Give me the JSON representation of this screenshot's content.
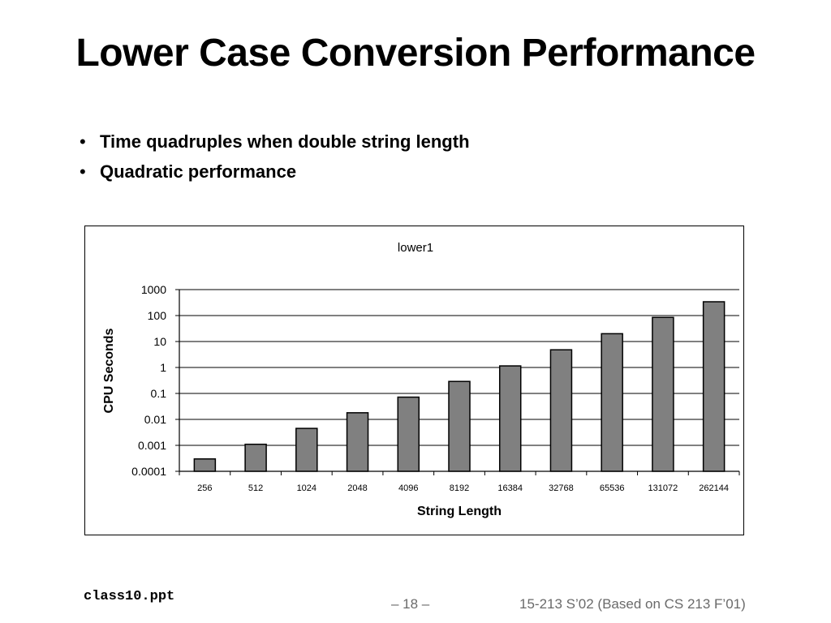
{
  "slide": {
    "title": "Lower Case Conversion Performance",
    "bullets": [
      "Time quadruples when double string length",
      "Quadratic performance"
    ],
    "bullet_glyph": "•"
  },
  "footer": {
    "file": "class10.ppt",
    "page": "– 18 –",
    "course": "15-213 S’02 (Based on CS 213 F’01)"
  },
  "chart_data": {
    "type": "bar",
    "title": "lower1",
    "xlabel": "String Length",
    "ylabel": "CPU Seconds",
    "yscale": "log",
    "ylim": [
      0.0001,
      1000
    ],
    "yticks": [
      "0.0001",
      "0.001",
      "0.01",
      "0.1",
      "1",
      "10",
      "100",
      "1000"
    ],
    "categories": [
      "256",
      "512",
      "1024",
      "2048",
      "4096",
      "8192",
      "16384",
      "32768",
      "65536",
      "131072",
      "262144"
    ],
    "values": [
      0.0003,
      0.0011,
      0.0045,
      0.018,
      0.072,
      0.29,
      1.15,
      4.8,
      20,
      85,
      340
    ],
    "grid": true,
    "legend": "none",
    "colors": {
      "bar_fill": "#808080",
      "bar_stroke": "#000000",
      "grid": "#000000"
    }
  }
}
